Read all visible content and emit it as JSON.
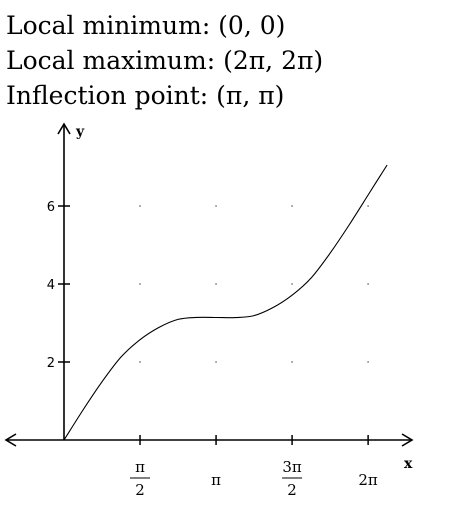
{
  "header": {
    "lines": [
      "Local minimum: (0, 0)",
      "Local maximum: (2π, 2π)",
      "Inflection point: (π, π)"
    ]
  },
  "chart_data": {
    "type": "line",
    "title": "",
    "xlabel": "x",
    "ylabel": "y",
    "xlim": [
      -1.5708,
      7.0686
    ],
    "ylim": [
      0,
      7.5
    ],
    "x_ticks": [
      {
        "value": 1.5708,
        "label_num": "π",
        "label_den": "2"
      },
      {
        "value": 3.1416,
        "label": "π"
      },
      {
        "value": 4.7124,
        "label_num": "3π",
        "label_den": "2"
      },
      {
        "value": 6.2832,
        "label": "2π"
      }
    ],
    "y_ticks": [
      {
        "value": 2,
        "label": "2"
      },
      {
        "value": 4,
        "label": "4"
      },
      {
        "value": 6,
        "label": "6"
      }
    ],
    "grid": "dotted",
    "series": [
      {
        "points": [
          [
            0.0,
            0.0
          ],
          [
            0.3927,
            0.7693
          ],
          [
            0.7854,
            1.4925
          ],
          [
            1.1781,
            2.1289
          ],
          [
            1.5708,
            2.5708
          ],
          [
            1.9635,
            2.887
          ],
          [
            2.3562,
            3.0925
          ],
          [
            2.7489,
            3.1438
          ],
          [
            3.1416,
            3.1416
          ],
          [
            3.5343,
            3.1394
          ],
          [
            3.927,
            3.1907
          ],
          [
            4.3197,
            3.3962
          ],
          [
            4.7124,
            3.7124
          ],
          [
            5.1051,
            4.1543
          ],
          [
            5.4978,
            4.7907
          ],
          [
            5.8905,
            5.5139
          ],
          [
            6.2832,
            6.2832
          ],
          [
            6.6759,
            7.0525
          ]
        ]
      }
    ]
  }
}
